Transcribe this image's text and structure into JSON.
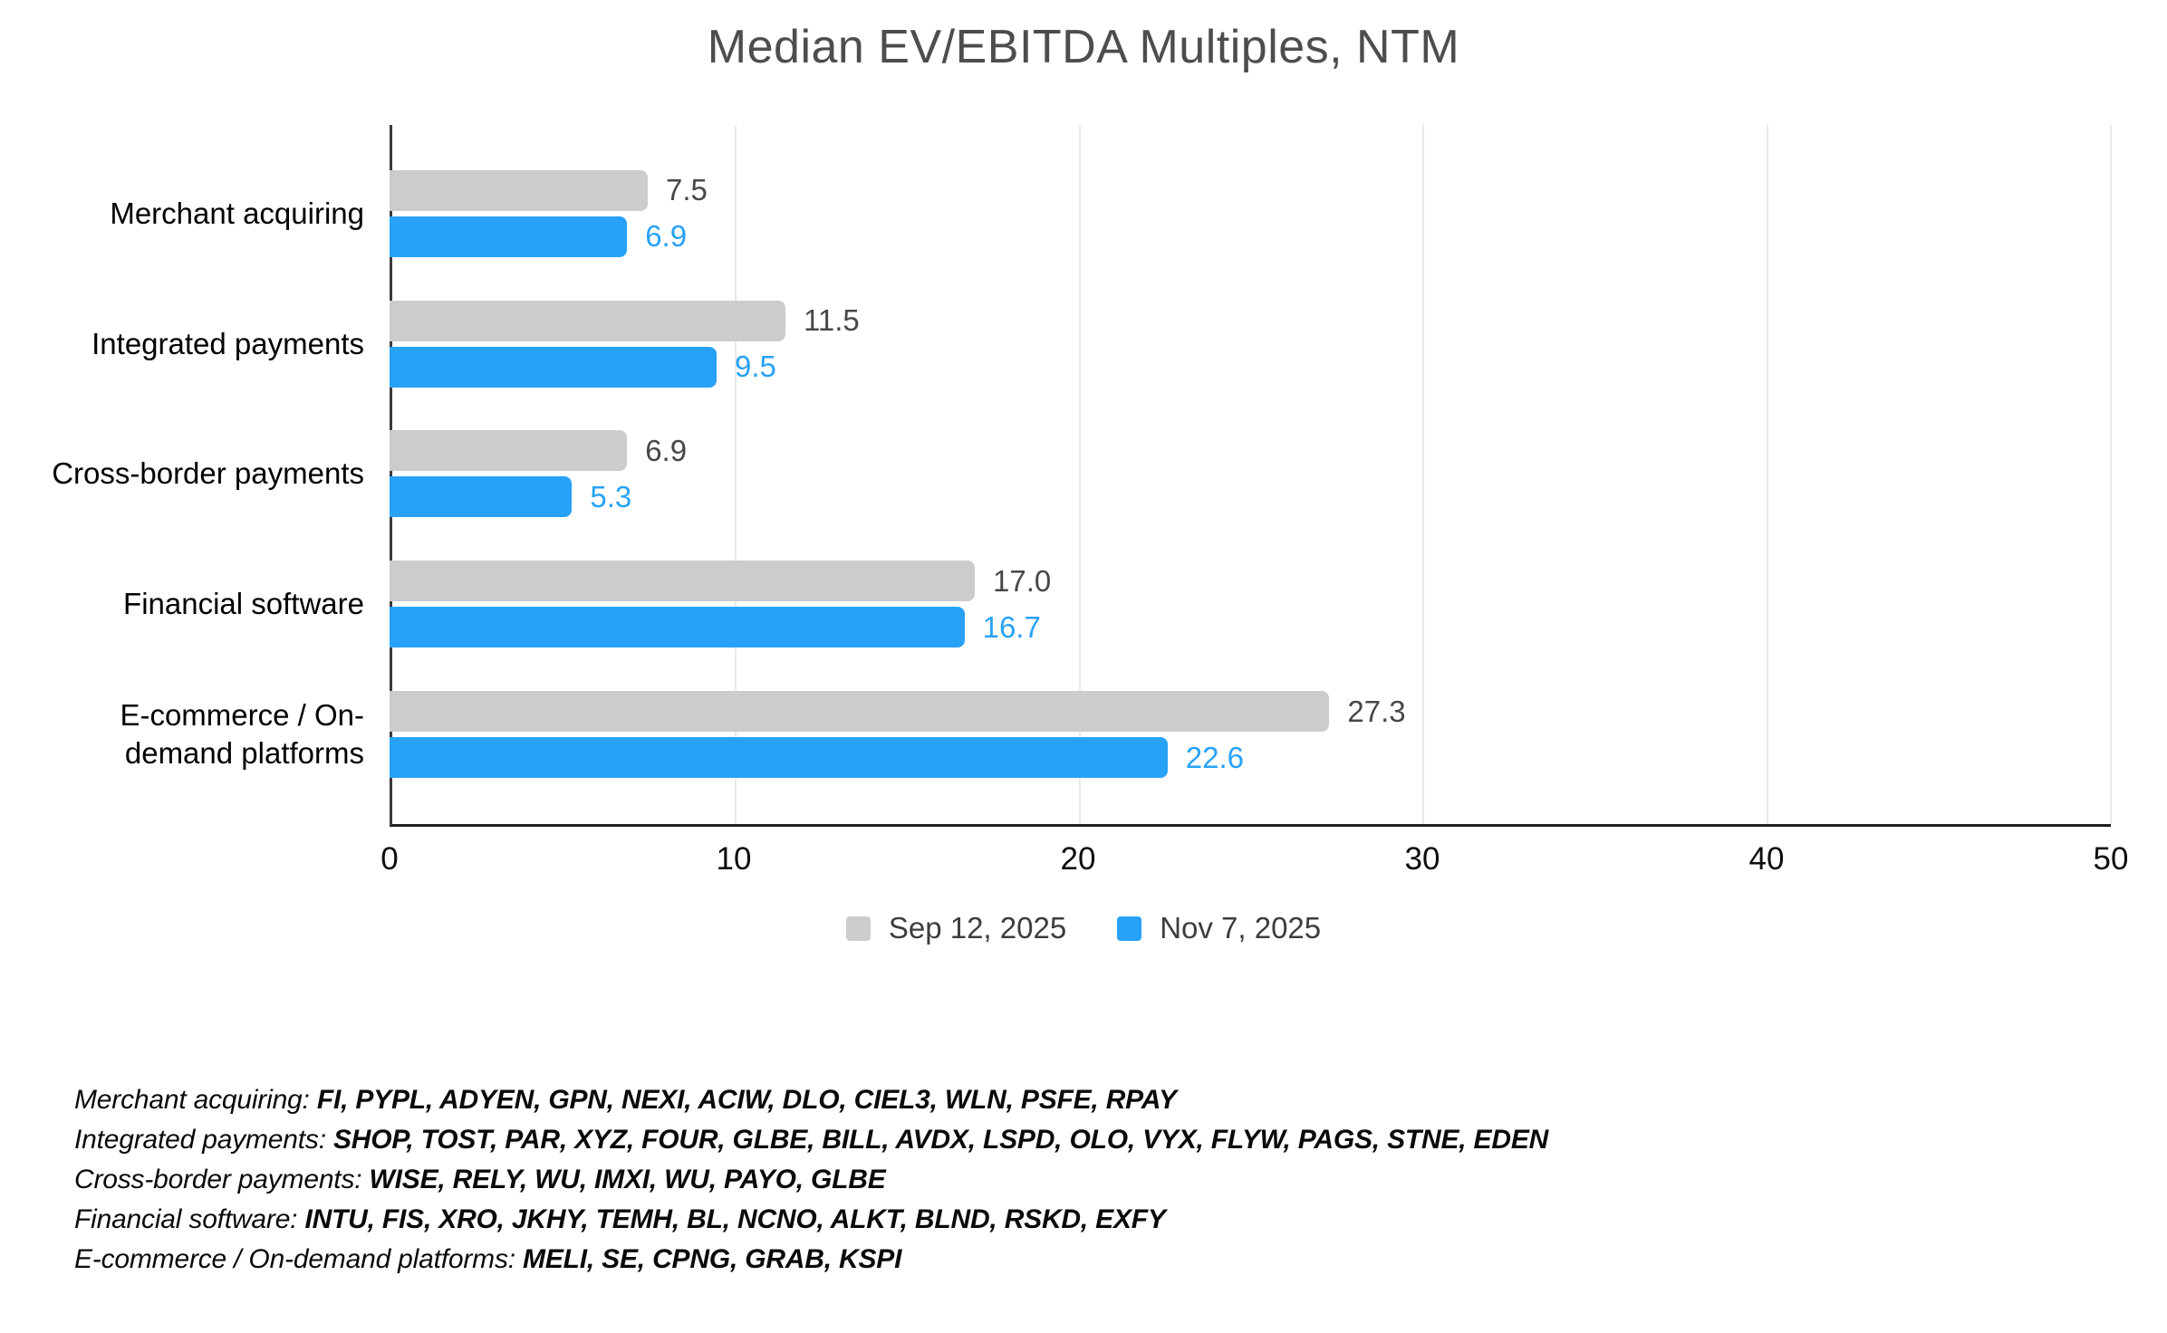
{
  "chart_data": {
    "type": "bar",
    "orientation": "horizontal",
    "title": "Median EV/EBITDA Multiples, NTM",
    "categories": [
      "Merchant acquiring",
      "Integrated payments",
      "Cross-border payments",
      "Financial software",
      "E-commerce / On-\ndemand platforms"
    ],
    "series": [
      {
        "name": "Sep 12, 2025",
        "color": "#cccccc",
        "label_color": "#474747",
        "values": [
          7.5,
          11.5,
          6.9,
          17.0,
          27.3
        ]
      },
      {
        "name": "Nov 7, 2025",
        "color": "#28a2f8",
        "label_color": "#28a2f8",
        "values": [
          6.9,
          9.5,
          5.3,
          16.7,
          22.6
        ]
      }
    ],
    "xlim": [
      0,
      50
    ],
    "x_ticks": [
      0,
      10,
      20,
      30,
      40,
      50
    ],
    "grid": true,
    "legend_position": "bottom",
    "value_label_decimals": 1
  },
  "footnotes": [
    {
      "category": "Merchant acquiring:",
      "tickers": "FI, PYPL, ADYEN, GPN, NEXI, ACIW, DLO, CIEL3, WLN, PSFE, RPAY"
    },
    {
      "category": "Integrated payments:",
      "tickers": "SHOP, TOST, PAR, XYZ, FOUR, GLBE, BILL, AVDX, LSPD, OLO, VYX, FLYW, PAGS, STNE, EDEN"
    },
    {
      "category": "Cross-border payments:",
      "tickers": "WISE, RELY, WU, IMXI, WU, PAYO, GLBE"
    },
    {
      "category": "Financial software:",
      "tickers": "INTU, FIS, XRO, JKHY, TEMH, BL, NCNO, ALKT, BLND, RSKD, EXFY"
    },
    {
      "category": "E-commerce / On-demand platforms:",
      "tickers": "MELI, SE, CPNG, GRAB, KSPI"
    }
  ]
}
